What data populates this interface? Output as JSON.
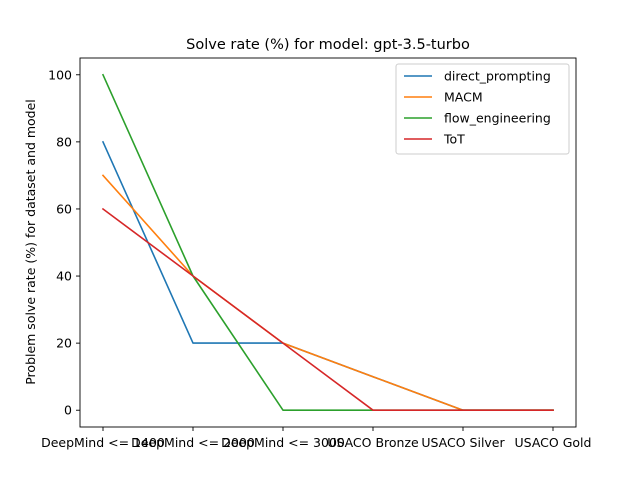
{
  "chart_data": {
    "type": "line",
    "title": "Solve rate (%) for model: gpt-3.5-turbo",
    "xlabel": "",
    "ylabel": "Problem solve rate (%) for dataset and model",
    "categories": [
      "DeepMind <= 1400",
      "DeepMind <= 2000",
      "DeepMind <= 3000",
      "USACO Bronze",
      "USACO Silver",
      "USACO Gold"
    ],
    "ylim": [
      -5,
      105
    ],
    "yticks": [
      0,
      20,
      40,
      60,
      80,
      100
    ],
    "grid": false,
    "legend_position": "top-right",
    "series": [
      {
        "name": "direct_prompting",
        "color": "#1f77b4",
        "values": [
          80,
          20,
          20,
          10,
          0,
          0
        ]
      },
      {
        "name": "MACM",
        "color": "#ff7f0e",
        "values": [
          70,
          40,
          20,
          10,
          0,
          0
        ]
      },
      {
        "name": "flow_engineering",
        "color": "#2ca02c",
        "values": [
          100,
          40,
          0,
          0,
          0,
          0
        ]
      },
      {
        "name": "ToT",
        "color": "#d62728",
        "values": [
          60,
          40,
          20,
          0,
          0,
          0
        ]
      }
    ]
  }
}
